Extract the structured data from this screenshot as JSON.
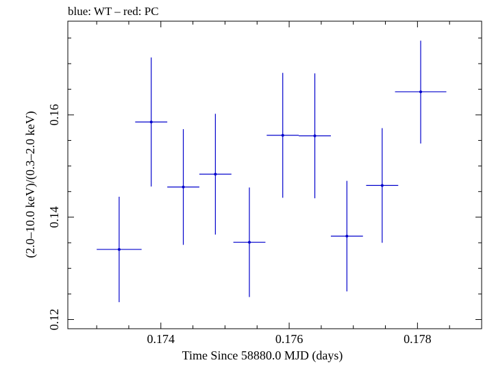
{
  "chart_data": {
    "type": "scatter",
    "title": "blue: WT – red: PC",
    "xlabel": "Time Since 58880.0 MJD (days)",
    "ylabel": "(2.0–10.0 keV)/(0.3–2.0 keV)",
    "xlim": [
      0.17255,
      0.179
    ],
    "ylim": [
      0.1182,
      0.1783
    ],
    "x_ticks": [
      0.174,
      0.176,
      0.178
    ],
    "x_tick_labels": [
      "0.174",
      "0.176",
      "0.178"
    ],
    "y_ticks": [
      0.12,
      0.14,
      0.16
    ],
    "y_tick_labels": [
      "0.12",
      "0.14",
      "0.16"
    ],
    "grid": false,
    "series": [
      {
        "name": "WT",
        "color": "#0000cc",
        "points": [
          {
            "x": 0.17335,
            "y": 0.1337,
            "xerr": 0.00035,
            "yerr_low": 0.0103,
            "yerr_high": 0.0103
          },
          {
            "x": 0.17385,
            "y": 0.1586,
            "xerr": 0.00025,
            "yerr_low": 0.0126,
            "yerr_high": 0.0126
          },
          {
            "x": 0.17435,
            "y": 0.1459,
            "xerr": 0.00025,
            "yerr_low": 0.0113,
            "yerr_high": 0.0113
          },
          {
            "x": 0.17485,
            "y": 0.1484,
            "xerr": 0.00025,
            "yerr_low": 0.0118,
            "yerr_high": 0.0118
          },
          {
            "x": 0.17538,
            "y": 0.1351,
            "xerr": 0.00025,
            "yerr_low": 0.0107,
            "yerr_high": 0.0107
          },
          {
            "x": 0.1759,
            "y": 0.156,
            "xerr": 0.00025,
            "yerr_low": 0.0122,
            "yerr_high": 0.0122
          },
          {
            "x": 0.1764,
            "y": 0.1559,
            "xerr": 0.00025,
            "yerr_low": 0.0122,
            "yerr_high": 0.0122
          },
          {
            "x": 0.1769,
            "y": 0.1363,
            "xerr": 0.00025,
            "yerr_low": 0.0108,
            "yerr_high": 0.0108
          },
          {
            "x": 0.17745,
            "y": 0.1462,
            "xerr": 0.00025,
            "yerr_low": 0.0112,
            "yerr_high": 0.0112
          },
          {
            "x": 0.17805,
            "y": 0.1645,
            "xerr": 0.0004,
            "yerr_low": 0.0101,
            "yerr_high": 0.01
          }
        ]
      }
    ]
  }
}
